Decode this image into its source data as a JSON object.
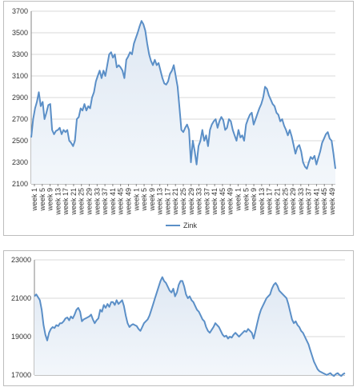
{
  "chart_data": [
    {
      "type": "area",
      "title": "",
      "xlabel": "",
      "ylabel": "",
      "ylim": [
        2100,
        3700
      ],
      "y_ticks": [
        "2100",
        "2300",
        "2500",
        "2700",
        "2900",
        "3100",
        "3300",
        "3500",
        "3700"
      ],
      "x_tick_labels": [
        "week 1",
        "week 5",
        "week 9",
        "week 13",
        "week 17",
        "week 21",
        "week 25",
        "week 29",
        "week 33",
        "week 37",
        "week 41",
        "week 45",
        "week 49",
        "week 1",
        "week 5",
        "week 9",
        "week 13",
        "week 17",
        "week 21",
        "week 25",
        "week 29",
        "week 33",
        "week 37",
        "week 41",
        "week 45",
        "week 49",
        "week 1",
        "week 5",
        "week 9",
        "week 13",
        "week 17",
        "week 21",
        "week 25",
        "week 29",
        "week 33",
        "week 37",
        "week 41",
        "week 45",
        "week 49"
      ],
      "grid": true,
      "legend_position": "bottom",
      "color": "#5b8fc7",
      "series": [
        {
          "name": "Zink",
          "values": [
            2530,
            2700,
            2800,
            2860,
            2950,
            2820,
            2860,
            2700,
            2760,
            2830,
            2840,
            2600,
            2560,
            2590,
            2600,
            2620,
            2560,
            2600,
            2580,
            2600,
            2500,
            2480,
            2450,
            2500,
            2700,
            2720,
            2800,
            2780,
            2840,
            2780,
            2820,
            2800,
            2900,
            2950,
            3050,
            3100,
            3150,
            3080,
            3150,
            3100,
            3200,
            3300,
            3320,
            3270,
            3300,
            3180,
            3200,
            3180,
            3150,
            3080,
            3250,
            3280,
            3320,
            3300,
            3400,
            3450,
            3500,
            3560,
            3610,
            3580,
            3520,
            3400,
            3300,
            3240,
            3200,
            3250,
            3200,
            3220,
            3150,
            3080,
            3030,
            3020,
            3050,
            3120,
            3150,
            3200,
            3100,
            3000,
            2800,
            2600,
            2580,
            2620,
            2650,
            2600,
            2300,
            2500,
            2400,
            2280,
            2450,
            2500,
            2600,
            2500,
            2550,
            2450,
            2600,
            2650,
            2680,
            2700,
            2620,
            2680,
            2720,
            2690,
            2600,
            2620,
            2700,
            2680,
            2600,
            2550,
            2500,
            2600,
            2530,
            2550,
            2500,
            2650,
            2700,
            2740,
            2760,
            2650,
            2700,
            2750,
            2800,
            2840,
            2900,
            3000,
            2980,
            2920,
            2880,
            2840,
            2820,
            2760,
            2740,
            2680,
            2700,
            2640,
            2600,
            2550,
            2600,
            2540,
            2460,
            2380,
            2440,
            2460,
            2400,
            2300,
            2260,
            2240,
            2300,
            2350,
            2330,
            2360,
            2280,
            2340,
            2400,
            2480,
            2520,
            2560,
            2580,
            2520,
            2500,
            2380,
            2240
          ]
        }
      ]
    },
    {
      "type": "area",
      "title": "",
      "xlabel": "",
      "ylabel": "",
      "ylim": [
        17000,
        23000
      ],
      "y_ticks": [
        "17000",
        "19000",
        "21000",
        "23000"
      ],
      "grid": true,
      "color": "#5b8fc7",
      "series": [
        {
          "name": "",
          "values": [
            21100,
            21200,
            21050,
            20900,
            20400,
            19600,
            19100,
            18800,
            19200,
            19400,
            19500,
            19450,
            19600,
            19550,
            19700,
            19700,
            19800,
            19950,
            20000,
            19850,
            20050,
            19950,
            20150,
            20400,
            20500,
            20300,
            19800,
            19900,
            19950,
            20000,
            20050,
            20150,
            19900,
            19700,
            19850,
            19950,
            20400,
            20300,
            20650,
            20500,
            20700,
            20550,
            20800,
            20800,
            20650,
            20900,
            20700,
            20800,
            20900,
            20600,
            20100,
            19700,
            19500,
            19600,
            19650,
            19600,
            19550,
            19400,
            19300,
            19500,
            19700,
            19800,
            19900,
            20100,
            20400,
            20700,
            21000,
            21300,
            21600,
            21900,
            22100,
            21900,
            21800,
            21600,
            21400,
            21300,
            21500,
            21100,
            21300,
            21700,
            21900,
            21900,
            21600,
            21200,
            21000,
            21100,
            20900,
            20800,
            20600,
            20400,
            20300,
            20100,
            19900,
            19800,
            19500,
            19300,
            19200,
            19350,
            19500,
            19700,
            19600,
            19500,
            19300,
            19100,
            19000,
            19050,
            18900,
            19000,
            18950,
            19100,
            19200,
            19100,
            19000,
            19100,
            19200,
            19300,
            19250,
            19400,
            19300,
            19200,
            18900,
            19300,
            19700,
            20100,
            20400,
            20600,
            20800,
            21000,
            21100,
            21200,
            21500,
            21700,
            21800,
            21650,
            21400,
            21300,
            21200,
            21100,
            21000,
            20700,
            20300,
            19900,
            19700,
            19800,
            19600,
            19500,
            19300,
            19200,
            19000,
            18800,
            18600,
            18300,
            18000,
            17700,
            17500,
            17300,
            17200,
            17150,
            17100,
            17050,
            17000,
            17050,
            17100,
            17000,
            16950,
            17050,
            17100,
            17000,
            16950,
            17050,
            17100
          ]
        }
      ]
    }
  ]
}
